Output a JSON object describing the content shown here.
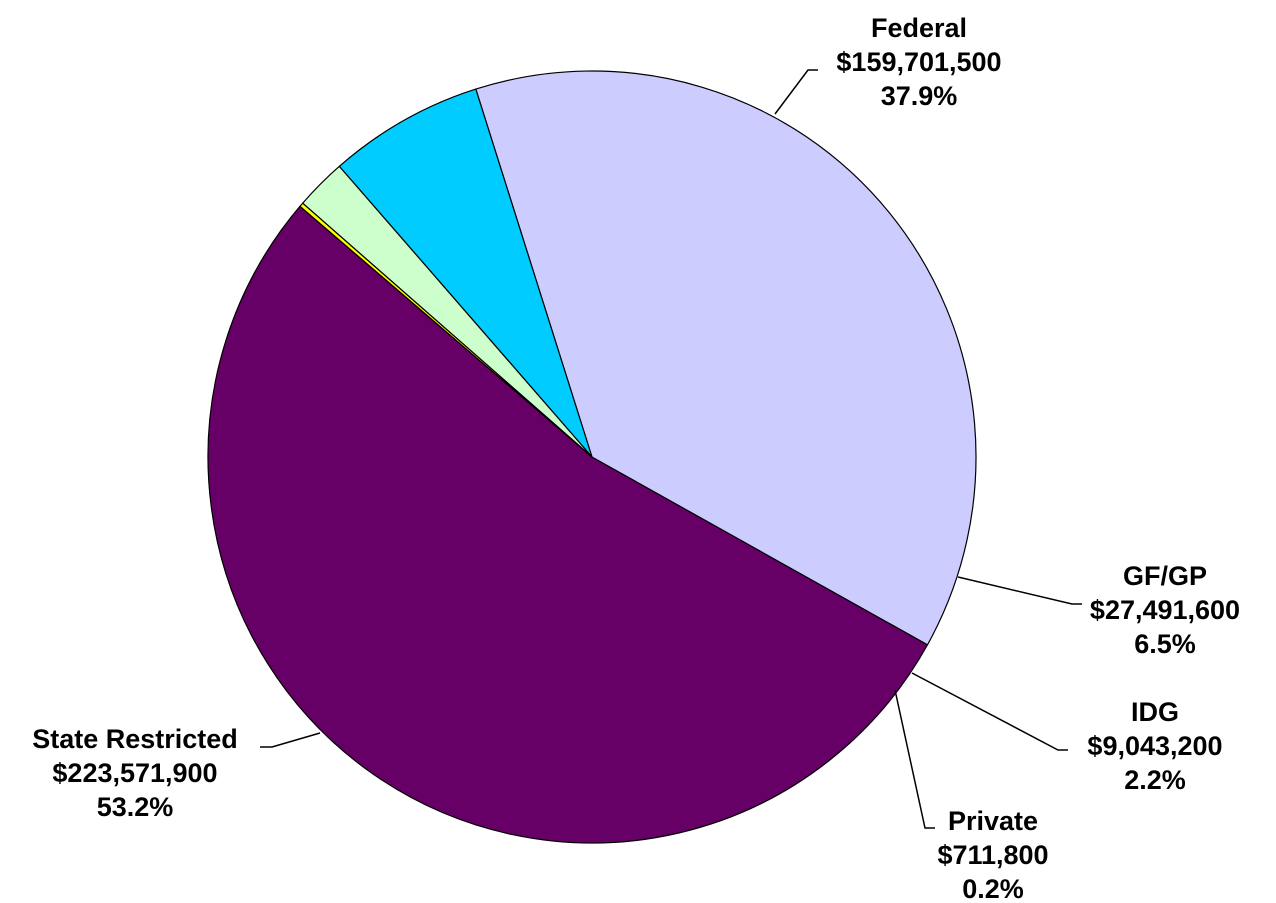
{
  "chart_data": {
    "type": "pie",
    "title": "",
    "slices": [
      {
        "name": "State Restricted",
        "value": 223571900,
        "value_label": "$223,571,900",
        "percent_label": "53.2%",
        "color": "#660066"
      },
      {
        "name": "Federal",
        "value": 159701500,
        "value_label": "$159,701,500",
        "percent_label": "37.9%",
        "color": "#CCCCFF"
      },
      {
        "name": "GF/GP",
        "value": 27491600,
        "value_label": "$27,491,600",
        "percent_label": "6.5%",
        "color": "#00CCFF"
      },
      {
        "name": "IDG",
        "value": 9043200,
        "value_label": "$9,043,200",
        "percent_label": "2.2%",
        "color": "#CCFFCC"
      },
      {
        "name": "Private",
        "value": 711800,
        "value_label": "$711,800",
        "percent_label": "0.2%",
        "color": "#FFFF00"
      }
    ],
    "legend": "none",
    "data_labels": "outside with leader lines"
  }
}
